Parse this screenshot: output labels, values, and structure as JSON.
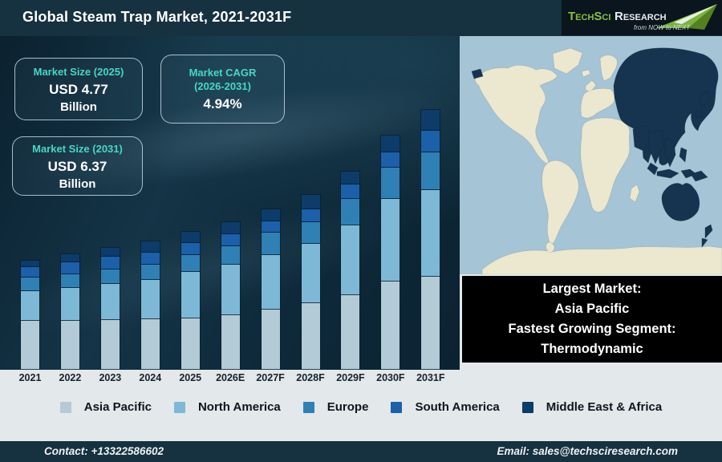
{
  "header": {
    "title": "Global Steam Trap Market, 2021-2031F",
    "logo": {
      "brand_primary": "TechSci",
      "brand_secondary": "Research",
      "tagline": "from NOW to NEXT",
      "brand_green": "#86c23f"
    }
  },
  "stats": [
    {
      "label": "Market Size (2025)",
      "value": "USD 4.77",
      "unit": "Billion"
    },
    {
      "label": "Market CAGR (2026-2031)",
      "value": "4.94%",
      "unit": ""
    },
    {
      "label": "Market Size (2031)",
      "value": "USD 6.37",
      "unit": "Billion"
    }
  ],
  "chart_data": {
    "type": "bar",
    "stacked": true,
    "unit": "USD Billion",
    "title": "Global Steam Trap Market, 2021-2031F",
    "categories": [
      "2021",
      "2022",
      "2023",
      "2024",
      "2025",
      "2026E",
      "2027F",
      "2028F",
      "2029F",
      "2030F",
      "2031F"
    ],
    "series": [
      {
        "name": "Asia Pacific",
        "color": "#b3cbd6",
        "values": [
          1.97,
          1.9,
          1.86,
          1.82,
          1.77,
          1.8,
          1.9,
          1.99,
          2.09,
          2.27,
          2.27
        ]
      },
      {
        "name": "North America",
        "color": "#7db9d6",
        "values": [
          1.19,
          1.28,
          1.35,
          1.44,
          1.61,
          1.67,
          1.72,
          1.8,
          1.96,
          2.13,
          2.14
        ]
      },
      {
        "name": "Europe",
        "color": "#2f80b4",
        "values": [
          0.55,
          0.53,
          0.54,
          0.55,
          0.58,
          0.61,
          0.71,
          0.65,
          0.74,
          0.81,
          0.92
        ]
      },
      {
        "name": "South America",
        "color": "#1c60a9",
        "values": [
          0.42,
          0.45,
          0.48,
          0.43,
          0.42,
          0.4,
          0.35,
          0.38,
          0.41,
          0.39,
          0.53
        ]
      },
      {
        "name": "Middle East & Africa",
        "color": "#0d3c6b",
        "values": [
          0.26,
          0.31,
          0.33,
          0.4,
          0.39,
          0.42,
          0.38,
          0.43,
          0.36,
          0.43,
          0.51
        ]
      }
    ],
    "totals_estimated": [
      4.39,
      4.47,
      4.56,
      4.64,
      4.77,
      4.9,
      5.06,
      5.25,
      5.56,
      6.03,
      6.37
    ],
    "anchor_values": {
      "market_size_2025": 4.77,
      "market_size_2031": 6.37,
      "cagr_2026_2031_pct": 4.94
    },
    "xlabel": "",
    "ylabel": "",
    "gridlines": false,
    "value_axis_visible": false,
    "legend_position": "bottom"
  },
  "map": {
    "highlighted_region": "Asia Pacific",
    "ocean_color": "#a5c4d5",
    "land_color": "#ece7cf",
    "highlight_color": "#16334f"
  },
  "callout": {
    "line1": "Largest Market:",
    "line2": "Asia Pacific",
    "line3": "Fastest Growing Segment:",
    "line4": "Thermodynamic"
  },
  "footer": {
    "contact": "Contact: +13322586602",
    "email": "Email: sales@techsciresearch.com"
  }
}
